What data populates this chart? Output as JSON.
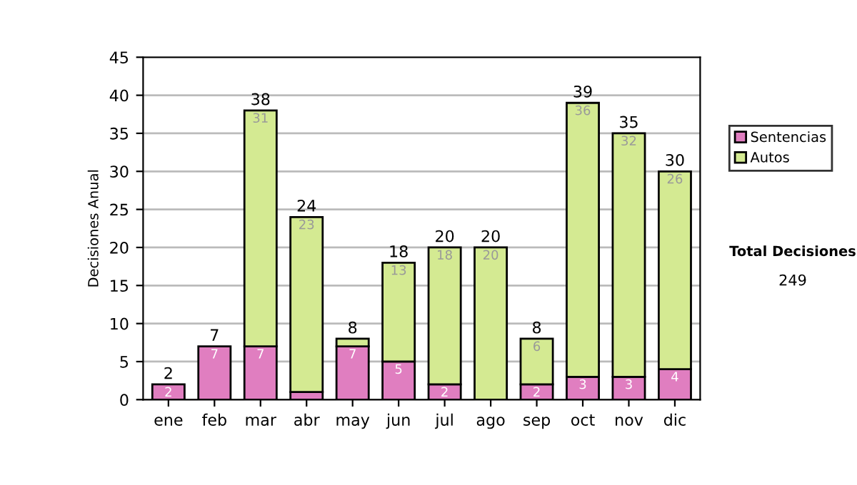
{
  "chart_data": {
    "type": "bar",
    "stacked": true,
    "ylabel": "Decisiones Anual",
    "categories": [
      "ene",
      "feb",
      "mar",
      "abr",
      "may",
      "jun",
      "jul",
      "ago",
      "sep",
      "oct",
      "nov",
      "dic"
    ],
    "series": [
      {
        "name": "Sentencias",
        "color": "#e07ec0",
        "values": [
          2,
          7,
          7,
          1,
          7,
          5,
          2,
          0,
          2,
          3,
          3,
          4
        ],
        "value_labels": [
          "2",
          "7",
          "7",
          null,
          "7",
          "5",
          "2",
          null,
          "2",
          "3",
          "3",
          "4"
        ]
      },
      {
        "name": "Autos",
        "color": "#d4ea92",
        "values": [
          0,
          0,
          31,
          23,
          1,
          13,
          18,
          20,
          6,
          36,
          32,
          26
        ],
        "value_labels": [
          null,
          null,
          "31",
          "23",
          null,
          "13",
          "18",
          "20",
          "6",
          "36",
          "32",
          "26"
        ]
      }
    ],
    "totals": [
      "2",
      "7",
      "38",
      "24",
      "8",
      "18",
      "20",
      "20",
      "8",
      "39",
      "35",
      "30"
    ],
    "ylim": [
      0,
      45
    ],
    "yticks": [
      0,
      5,
      10,
      15,
      20,
      25,
      30,
      35,
      40,
      45
    ],
    "grid": "y",
    "legend": "right",
    "annotations": [
      "Total Decisiones",
      "249"
    ]
  }
}
